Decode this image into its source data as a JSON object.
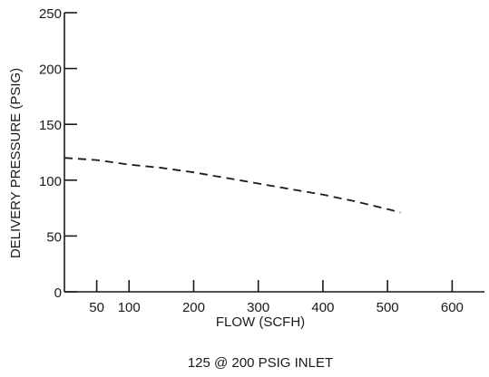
{
  "chart_data": {
    "type": "line",
    "xlabel": "FLOW (SCFH)",
    "ylabel": "DELIVERY PRESSURE (PSIG)",
    "caption": "125 @ 200 PSIG INLET",
    "xlim": [
      0,
      650
    ],
    "ylim": [
      0,
      250
    ],
    "xticks": [
      50,
      100,
      200,
      300,
      400,
      500,
      600
    ],
    "yticks": [
      0,
      50,
      100,
      150,
      200,
      250
    ],
    "grid": false,
    "series": [
      {
        "line_style": "dashed",
        "x": [
          0,
          50,
          100,
          150,
          200,
          250,
          300,
          350,
          400,
          450,
          500,
          520
        ],
        "y": [
          120,
          118,
          114,
          111,
          107,
          102,
          97,
          92,
          87,
          81,
          74,
          71
        ]
      }
    ]
  }
}
